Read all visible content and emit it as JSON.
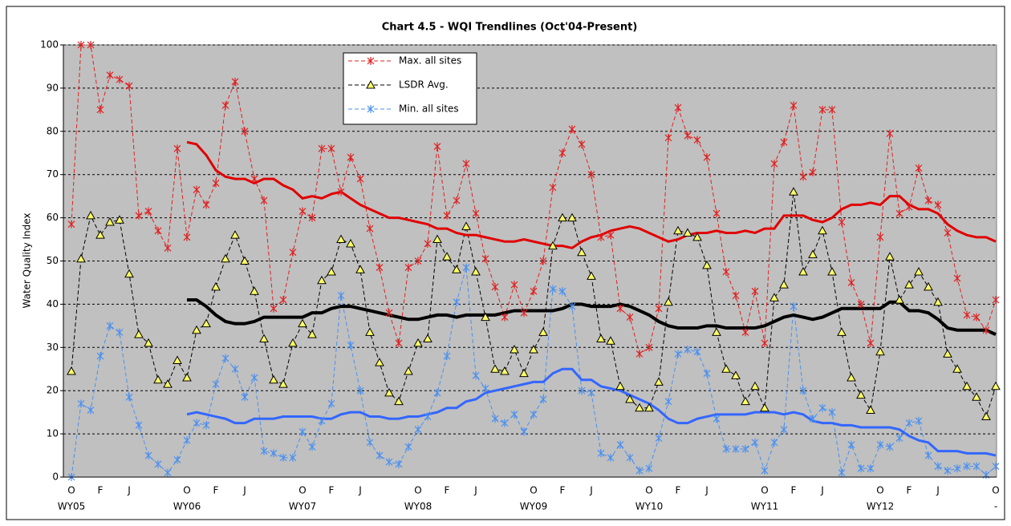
{
  "chart_data": {
    "type": "line",
    "title": "Chart 4.5 - WQI Trendlines (Oct'04-Present)",
    "y_label": "Water Quality Index",
    "ylim": [
      0,
      100
    ],
    "yticks": [
      0,
      10,
      20,
      30,
      40,
      50,
      60,
      70,
      80,
      90,
      100
    ],
    "grid": true,
    "legend": "top-center",
    "categories": [
      "O",
      null,
      null,
      "F",
      null,
      null,
      "J",
      null,
      null,
      null,
      null,
      null,
      "O",
      null,
      null,
      "F",
      null,
      null,
      "J",
      null,
      null,
      null,
      null,
      null,
      "O",
      null,
      null,
      "F",
      null,
      null,
      "J",
      null,
      null,
      null,
      null,
      null,
      "O",
      null,
      null,
      "F",
      null,
      null,
      "J",
      null,
      null,
      null,
      null,
      null,
      "O",
      null,
      null,
      "F",
      null,
      null,
      "J",
      null,
      null,
      null,
      null,
      null,
      "O",
      null,
      null,
      "F",
      null,
      null,
      "J",
      null,
      null,
      null,
      null,
      null,
      "O",
      null,
      null,
      "F",
      null,
      null,
      "J",
      null,
      null,
      null,
      null,
      null,
      "O",
      null,
      null,
      "F",
      null,
      null,
      "J",
      null,
      null,
      null,
      null,
      null,
      "O"
    ],
    "groups": [
      "WY05",
      null,
      null,
      null,
      null,
      null,
      null,
      null,
      null,
      null,
      null,
      null,
      "WY06",
      null,
      null,
      null,
      null,
      null,
      null,
      null,
      null,
      null,
      null,
      null,
      "WY07",
      null,
      null,
      null,
      null,
      null,
      null,
      null,
      null,
      null,
      null,
      null,
      "WY08",
      null,
      null,
      null,
      null,
      null,
      null,
      null,
      null,
      null,
      null,
      null,
      "WY09",
      null,
      null,
      null,
      null,
      null,
      null,
      null,
      null,
      null,
      null,
      null,
      "WY10",
      null,
      null,
      null,
      null,
      null,
      null,
      null,
      null,
      null,
      null,
      null,
      "WY11",
      null,
      null,
      null,
      null,
      null,
      null,
      null,
      null,
      null,
      null,
      null,
      "WY12",
      null,
      null,
      null,
      null,
      null,
      null,
      null,
      null,
      null,
      null,
      null,
      "-"
    ],
    "series": [
      {
        "name": "Max. all sites",
        "color": "#e02020",
        "style": "dashed",
        "marker": "star",
        "width": 1,
        "values": [
          58.5,
          100,
          100,
          85,
          93,
          92,
          90.5,
          60.5,
          61.5,
          57,
          53,
          76,
          55.5,
          66.5,
          63,
          68,
          86,
          91.5,
          80,
          69,
          64,
          39,
          41,
          52,
          61.5,
          60,
          76,
          76,
          66,
          74,
          69,
          57.5,
          48.5,
          38,
          31,
          48.5,
          50,
          54,
          76.5,
          60.5,
          64,
          72.5,
          61,
          50.5,
          44,
          37,
          44.5,
          38,
          43,
          50,
          67,
          75,
          80.5,
          77,
          70,
          55.5,
          56,
          39,
          37,
          28.5,
          30,
          39,
          78.5,
          85.5,
          79,
          78,
          74,
          61,
          47.5,
          42,
          33.5,
          43,
          31,
          72.5,
          77.5,
          86,
          69.5,
          70.5,
          85,
          85,
          59,
          45,
          40,
          31,
          55.5,
          79.5,
          61,
          62.5,
          71.5,
          64,
          63,
          56.5,
          46,
          37.5,
          37,
          34,
          41
        ]
      },
      {
        "name": "LSDR Avg.",
        "color": "#000000",
        "style": "dashed",
        "marker": "triangle",
        "marker_fill": "#ffff66",
        "width": 1,
        "values": [
          24.5,
          50.5,
          60.5,
          56,
          59,
          59.5,
          47,
          33,
          31,
          22.5,
          21.5,
          27,
          23,
          34,
          35.5,
          44,
          50.5,
          56,
          50,
          43,
          32,
          22.5,
          21.5,
          31,
          35.5,
          33,
          45.5,
          47.5,
          55,
          54,
          48,
          33.5,
          26.5,
          19.5,
          17.5,
          24.5,
          31,
          32,
          55,
          51,
          48,
          58,
          47.5,
          37,
          25,
          24.5,
          29.5,
          24,
          29.5,
          33.5,
          53.5,
          60,
          60,
          52,
          46.5,
          32,
          31.5,
          21,
          18,
          16,
          16,
          22,
          40.5,
          57,
          56.5,
          55.5,
          49,
          33.5,
          25,
          23.5,
          17.5,
          21,
          16,
          41.5,
          44.5,
          66,
          47.5,
          51.5,
          57,
          47.5,
          33.5,
          23,
          19,
          15.5,
          29,
          51,
          41,
          44.5,
          47.5,
          44,
          40.5,
          28.5,
          25,
          21,
          18.5,
          14,
          21
        ]
      },
      {
        "name": "Min. all sites",
        "color": "#4a90f0",
        "style": "dashed",
        "marker": "star",
        "width": 1,
        "values": [
          0,
          17,
          15.5,
          28,
          35,
          33.5,
          18.5,
          12,
          5,
          3,
          1,
          4,
          8.5,
          12.5,
          12,
          21.5,
          27.5,
          25,
          18.5,
          23,
          6,
          5.5,
          4.5,
          4.5,
          10.5,
          7,
          13,
          17,
          42,
          30.5,
          20,
          8,
          5,
          3.5,
          3,
          7,
          11,
          14,
          19.5,
          28,
          40.5,
          48.5,
          23.5,
          20.5,
          13.5,
          12.5,
          14.5,
          10.5,
          14.5,
          18,
          43.5,
          43,
          39.5,
          20,
          19.5,
          5.5,
          4.5,
          7.5,
          4.5,
          1.5,
          2,
          9,
          17.5,
          28.5,
          29.5,
          29,
          24,
          13.5,
          6.5,
          6.5,
          6.5,
          8,
          1.5,
          8,
          11,
          39.5,
          20,
          13.5,
          16,
          15,
          1,
          7.5,
          2,
          2,
          7.5,
          7,
          9,
          12.5,
          13,
          5,
          2.5,
          1.5,
          2,
          2.5,
          2.5,
          0.5,
          2.5
        ]
      },
      {
        "color": "#e00000",
        "style": "solid",
        "marker": "none",
        "width": 3,
        "values": [
          null,
          null,
          null,
          null,
          null,
          null,
          null,
          null,
          null,
          null,
          null,
          null,
          77.5,
          77,
          74.5,
          71,
          69.5,
          69,
          69,
          68,
          69,
          69,
          67.5,
          66.5,
          64.5,
          65,
          64.5,
          65.5,
          66,
          64.5,
          63,
          62,
          61,
          60,
          60,
          59.5,
          59,
          58.5,
          57.5,
          57.5,
          56.5,
          56,
          56,
          55.5,
          55,
          54.5,
          54.5,
          55,
          54.5,
          54,
          53.5,
          53.5,
          53,
          54.5,
          55.5,
          56,
          57,
          57.5,
          58,
          57.5,
          56.5,
          55.5,
          54.5,
          55,
          56,
          56.5,
          56.5,
          57,
          56.5,
          56.5,
          57,
          56.5,
          57.5,
          57.5,
          60.5,
          60.5,
          60.5,
          59.5,
          59,
          60,
          62,
          63,
          63,
          63.5,
          63,
          65,
          65,
          63,
          62,
          62,
          61,
          58.5,
          57,
          56,
          55.5,
          55.5,
          54.5
        ]
      },
      {
        "color": "#000000",
        "style": "solid",
        "marker": "none",
        "width": 4,
        "values": [
          null,
          null,
          null,
          null,
          null,
          null,
          null,
          null,
          null,
          null,
          null,
          null,
          41,
          41,
          39.5,
          37.5,
          36,
          35.5,
          35.5,
          36,
          37,
          37,
          37,
          37,
          37,
          38,
          38,
          39,
          39.5,
          39.5,
          39,
          38.5,
          38,
          37.5,
          37,
          36.5,
          36.5,
          37,
          37.5,
          37.5,
          37,
          37.5,
          37.5,
          37.5,
          37.5,
          38,
          38.5,
          38.5,
          38.5,
          38.5,
          38.5,
          39,
          40,
          40,
          39.5,
          39.5,
          39.5,
          40,
          39.5,
          38.5,
          37.5,
          36,
          35,
          34.5,
          34.5,
          34.5,
          35,
          35,
          34.5,
          34.5,
          34.5,
          34.5,
          35,
          36,
          37,
          37.5,
          37,
          36.5,
          37,
          38,
          39,
          39,
          39,
          39,
          39,
          40.5,
          40.5,
          38.5,
          38.5,
          38,
          36.5,
          34.5,
          34,
          34,
          34,
          34,
          33
        ]
      },
      {
        "color": "#3366ff",
        "style": "solid",
        "marker": "none",
        "width": 3,
        "values": [
          null,
          null,
          null,
          null,
          null,
          null,
          null,
          null,
          null,
          null,
          null,
          null,
          14.5,
          15,
          14.5,
          14,
          13.5,
          12.5,
          12.5,
          13.5,
          13.5,
          13.5,
          14,
          14,
          14,
          14,
          13.5,
          13.5,
          14.5,
          15,
          15,
          14,
          14,
          13.5,
          13.5,
          14,
          14,
          14.5,
          15,
          16,
          16,
          17.5,
          18,
          19.5,
          20,
          20.5,
          21,
          21.5,
          22,
          22,
          24,
          25,
          25,
          22.5,
          22.5,
          21,
          20.5,
          20,
          19,
          18,
          17,
          15.5,
          13.5,
          12.5,
          12.5,
          13.5,
          14,
          14.5,
          14.5,
          14.5,
          14.5,
          15,
          15,
          15,
          14.5,
          15,
          14.5,
          13,
          12.5,
          12.5,
          12,
          12,
          11.5,
          11.5,
          11.5,
          11.5,
          11,
          9.5,
          8.5,
          8,
          6,
          6,
          6,
          5.5,
          5.5,
          5.5,
          5
        ]
      }
    ]
  }
}
